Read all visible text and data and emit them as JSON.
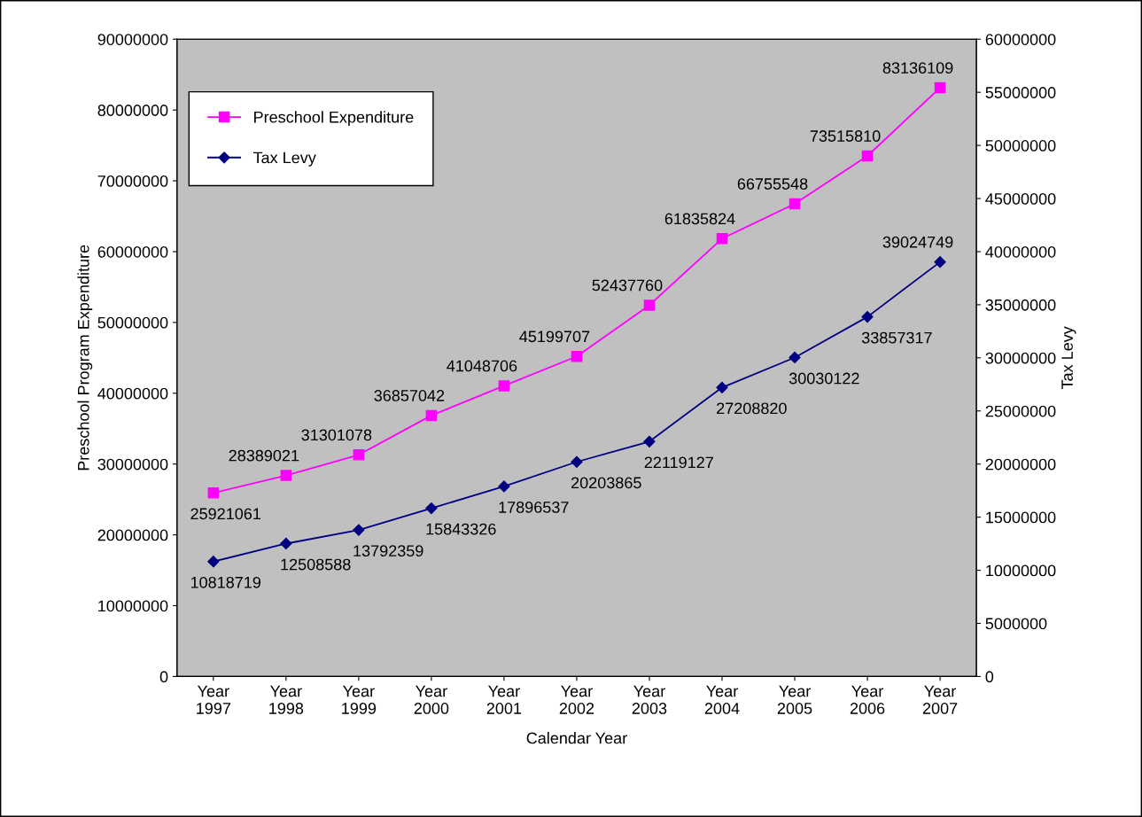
{
  "chart_data": {
    "type": "line",
    "xlabel": "Calendar Year",
    "ylabel": "Preschool Program Expenditure",
    "y2label": "Tax Levy",
    "categories": [
      "Year\n1997",
      "Year\n1998",
      "Year\n1999",
      "Year\n2000",
      "Year\n2001",
      "Year\n2002",
      "Year\n2003",
      "Year\n2004",
      "Year\n2005",
      "Year\n2006",
      "Year\n2007"
    ],
    "series": [
      {
        "name": "Preschool Expenditure",
        "color": "#ff00ff",
        "marker": "square",
        "values": [
          25921061,
          28389021,
          31301078,
          36857042,
          41048706,
          45199707,
          52437760,
          61835824,
          66755548,
          73515810,
          83136109
        ]
      },
      {
        "name": "Tax Levy",
        "color": "#000080",
        "marker": "diamond",
        "axis": "y2",
        "values": [
          10818719,
          12508588,
          13792359,
          15843326,
          17896537,
          20203865,
          22119127,
          27208820,
          30030122,
          33857317,
          39024749
        ]
      }
    ],
    "ylim": [
      0,
      90000000
    ],
    "yticks": [
      0,
      10000000,
      20000000,
      30000000,
      40000000,
      50000000,
      60000000,
      70000000,
      80000000,
      90000000
    ],
    "y2lim": [
      0,
      60000000
    ],
    "y2ticks": [
      0,
      5000000,
      10000000,
      15000000,
      20000000,
      25000000,
      30000000,
      35000000,
      40000000,
      45000000,
      50000000,
      55000000,
      60000000
    ],
    "data_labels": true,
    "grid": false,
    "legend": "top left",
    "line_style": "solid"
  }
}
